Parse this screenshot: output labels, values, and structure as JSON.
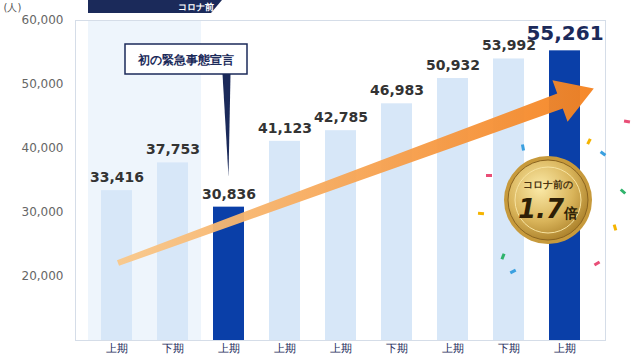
{
  "chart_data": {
    "type": "bar",
    "ylabel": "(人)",
    "categories": [
      "上期",
      "下期",
      "上期",
      "上期",
      "上期",
      "下期",
      "上期",
      "下期",
      "上期"
    ],
    "values": [
      33416,
      37753,
      30836,
      41123,
      42785,
      46983,
      50932,
      53992,
      55261
    ],
    "value_labels": [
      "33,416",
      "37,753",
      "30,836",
      "41,123",
      "42,785",
      "46,983",
      "50,932",
      "53,992",
      "55,261"
    ],
    "colors": [
      "#d7e7f8",
      "#d7e7f8",
      "#0a3fa8",
      "#d7e7f8",
      "#d7e7f8",
      "#d7e7f8",
      "#d7e7f8",
      "#d7e7f8",
      "#0a3fa8"
    ],
    "ylim": [
      10000,
      60000
    ],
    "yticks": [
      {
        "value": 20000,
        "label": "20,000"
      },
      {
        "value": 30000,
        "label": "30,000"
      },
      {
        "value": 40000,
        "label": "40,000"
      },
      {
        "value": 50000,
        "label": "50,000"
      },
      {
        "value": 60000,
        "label": "60,000"
      }
    ],
    "grid": false,
    "data_labels": true,
    "period_label": "コロナ前",
    "callout": "初の緊急事態宣言",
    "badge": {
      "text": "コロナ前の",
      "value": "1.7",
      "unit": "倍"
    }
  }
}
